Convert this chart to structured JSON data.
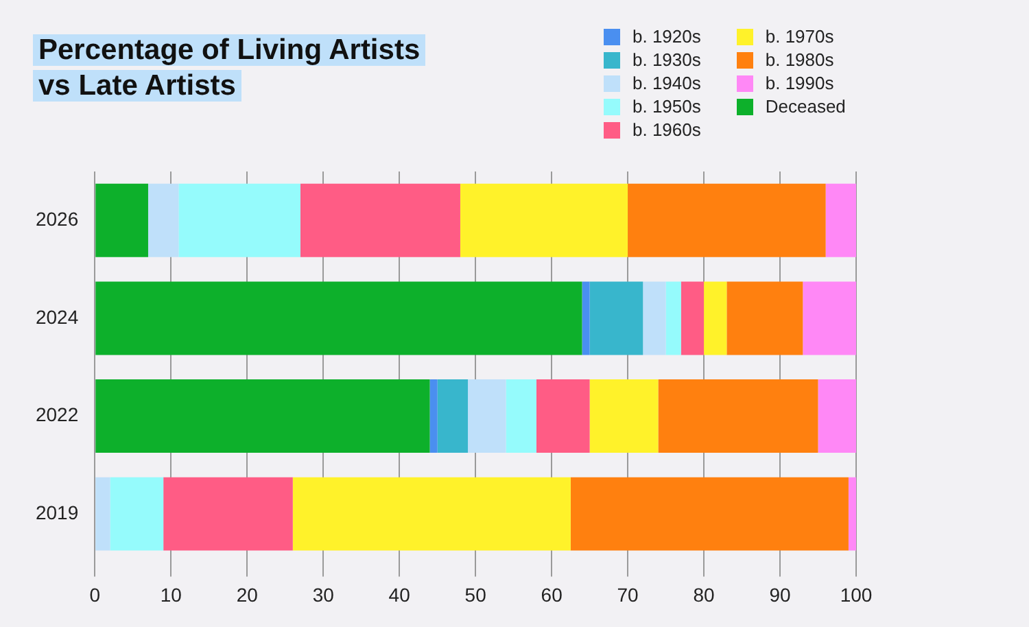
{
  "chart_data": {
    "type": "bar",
    "orientation": "horizontal",
    "stacked": true,
    "title": "Percentage of Living Artists\nvs Late Artists",
    "categories": [
      "2026",
      "2024",
      "2022",
      "2019"
    ],
    "series": [
      {
        "name": "Deceased",
        "color": "#0db02b",
        "values": [
          7,
          64,
          44,
          0
        ]
      },
      {
        "name": "b. 1920s",
        "color": "#4a8ff0",
        "values": [
          0,
          1,
          1,
          0
        ]
      },
      {
        "name": "b. 1930s",
        "color": "#38b6cc",
        "values": [
          0,
          7,
          4,
          0
        ]
      },
      {
        "name": "b. 1940s",
        "color": "#bfe0fa",
        "values": [
          4,
          3,
          5,
          2
        ]
      },
      {
        "name": "b. 1950s",
        "color": "#95fbfc",
        "values": [
          16,
          2,
          4,
          7
        ]
      },
      {
        "name": "b. 1960s",
        "color": "#ff5c85",
        "values": [
          21,
          3,
          7,
          17
        ]
      },
      {
        "name": "b. 1970s",
        "color": "#fff22a",
        "values": [
          22,
          3,
          9,
          36.5
        ]
      },
      {
        "name": "b. 1980s",
        "color": "#ff800f",
        "values": [
          26,
          10,
          21,
          36.5
        ]
      },
      {
        "name": "b. 1990s",
        "color": "#ff88f6",
        "values": [
          4,
          7,
          5,
          1
        ]
      }
    ],
    "xlim": [
      0,
      100
    ],
    "xticks": [
      0,
      10,
      20,
      30,
      40,
      50,
      60,
      70,
      80,
      90,
      100
    ],
    "grid": "x",
    "legend": "top right"
  }
}
